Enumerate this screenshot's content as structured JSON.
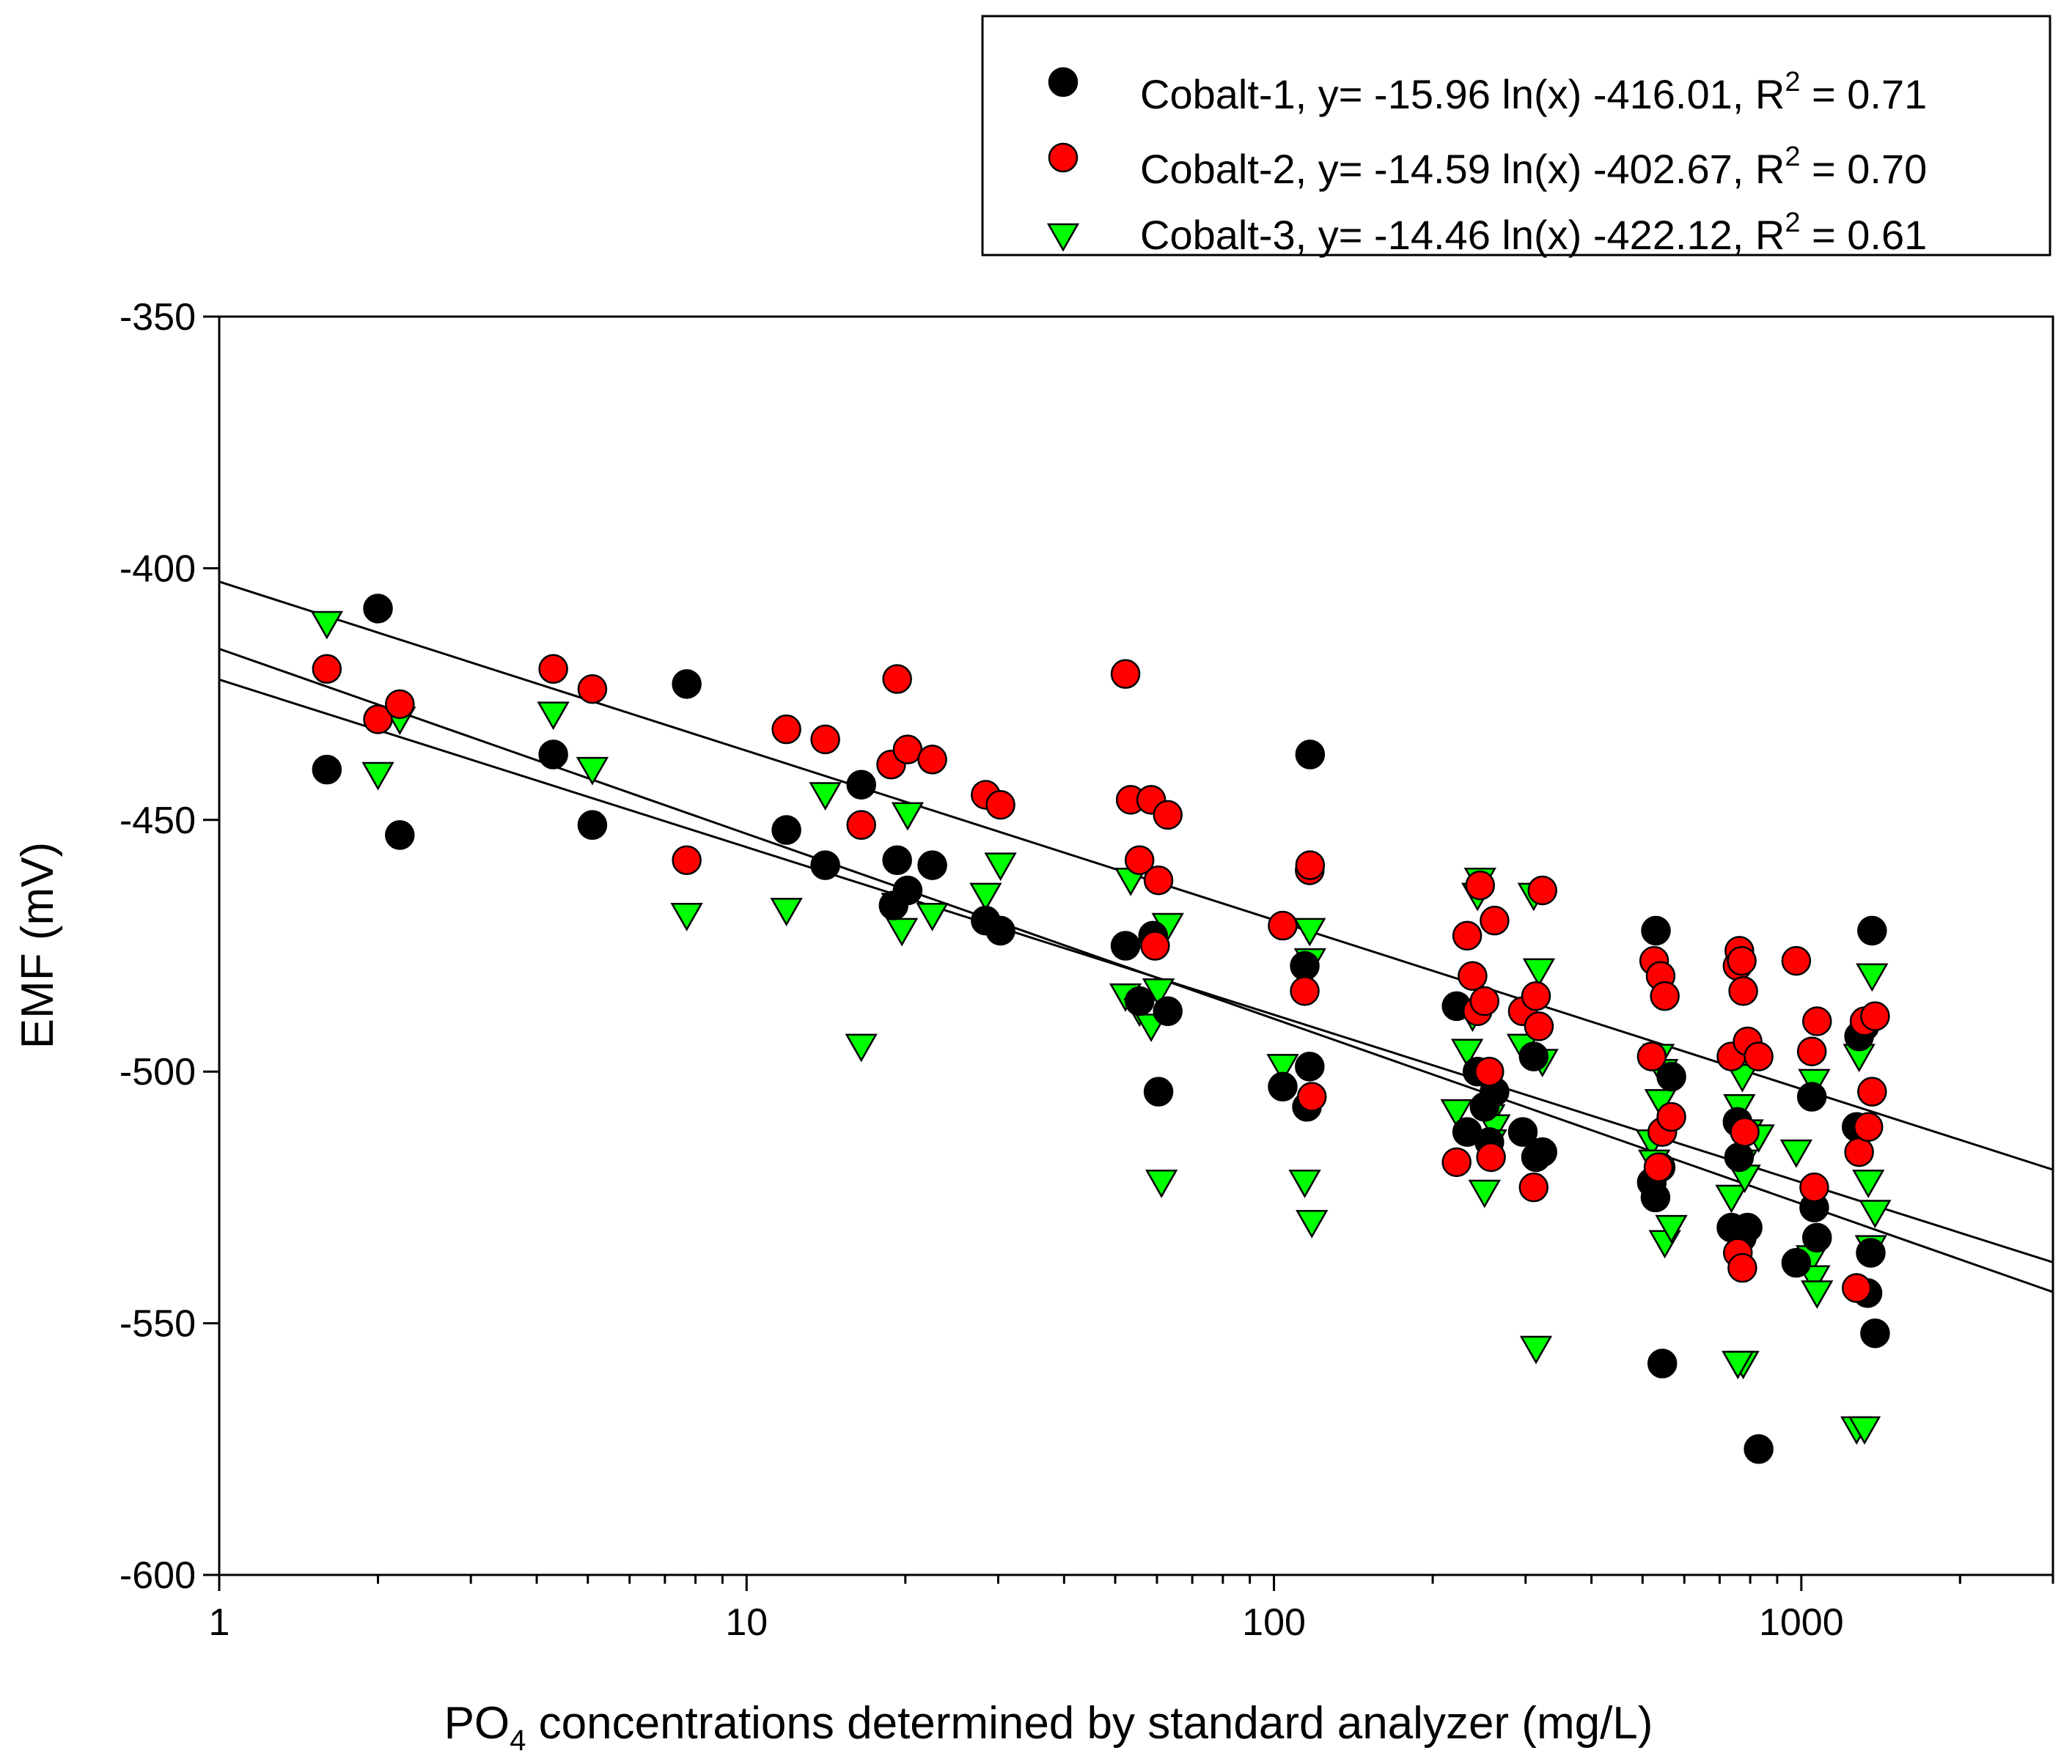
{
  "chart_data": {
    "type": "scatter",
    "xscale": "log",
    "xlim": [
      1,
      3000
    ],
    "ylim": [
      -600,
      -350
    ],
    "xlabel": {
      "prefix": "PO",
      "subscript": "4",
      "suffix": " concentrations determined by standard analyzer (mg/L)"
    },
    "ylabel": "EMF (mV)",
    "xticks": [
      1,
      10,
      100,
      1000
    ],
    "xtick_labels": [
      "1",
      "10",
      "100",
      "1000"
    ],
    "yticks": [
      -350,
      -400,
      -450,
      -500,
      -550,
      -600
    ],
    "ytick_labels": [
      "-350",
      "-400",
      "-450",
      "-500",
      "-550",
      "-600"
    ],
    "legend_position": "top-right, above plot",
    "series": [
      {
        "name": "Cobalt-1",
        "legend": {
          "prefix": "Cobalt-1, y= -15.96 ln(x) -416.01, R",
          "sup": "2",
          "suffix": " = 0.71"
        },
        "marker": "circle",
        "color": "#000000",
        "fit": {
          "slope": -15.96,
          "intercept": -416.01,
          "r2": 0.71
        },
        "points": [
          [
            1.6,
            -440
          ],
          [
            2.0,
            -408
          ],
          [
            2.2,
            -453
          ],
          [
            4.3,
            -437
          ],
          [
            5.1,
            -451
          ],
          [
            7.7,
            -423
          ],
          [
            11.9,
            -452
          ],
          [
            14.1,
            -459
          ],
          [
            16.5,
            -443
          ],
          [
            19.3,
            -458
          ],
          [
            20.2,
            -464
          ],
          [
            22.5,
            -459
          ],
          [
            19.0,
            -467
          ],
          [
            28.4,
            -470
          ],
          [
            30.3,
            -472
          ],
          [
            52.3,
            -475
          ],
          [
            59.0,
            -473
          ],
          [
            60.4,
            -504
          ],
          [
            62.9,
            -488
          ],
          [
            55.6,
            -486
          ],
          [
            103.9,
            -503
          ],
          [
            114.4,
            -479
          ],
          [
            116.9,
            -499
          ],
          [
            115.5,
            -507
          ],
          [
            117.1,
            -437
          ],
          [
            222.0,
            -487
          ],
          [
            232.5,
            -512
          ],
          [
            243.2,
            -500
          ],
          [
            250.8,
            -507
          ],
          [
            256.1,
            -514
          ],
          [
            262.0,
            -504
          ],
          [
            296.4,
            -512
          ],
          [
            310.8,
            -497
          ],
          [
            314.0,
            -517
          ],
          [
            322.9,
            -516
          ],
          [
            520.5,
            -522
          ],
          [
            529.0,
            -525
          ],
          [
            541.0,
            -519
          ],
          [
            545.0,
            -558
          ],
          [
            530.0,
            -472
          ],
          [
            567.0,
            -501
          ],
          [
            737.0,
            -531
          ],
          [
            757.0,
            -510
          ],
          [
            762.0,
            -517
          ],
          [
            771.0,
            -533
          ],
          [
            791.0,
            -531
          ],
          [
            830.0,
            -575
          ],
          [
            978.0,
            -538
          ],
          [
            1047.0,
            -505
          ],
          [
            1058.0,
            -527
          ],
          [
            1071.0,
            -533
          ],
          [
            1273.0,
            -511
          ],
          [
            1287.0,
            -493
          ],
          [
            1318.0,
            -491
          ],
          [
            1335.0,
            -544
          ],
          [
            1354.0,
            -536
          ],
          [
            1362.0,
            -472
          ],
          [
            1380.0,
            -552
          ]
        ]
      },
      {
        "name": "Cobalt-2",
        "legend": {
          "prefix": "Cobalt-2, y= -14.59 ln(x) -402.67, R",
          "sup": "2",
          "suffix": " = 0.70"
        },
        "marker": "circle",
        "color": "#ff0000",
        "fit": {
          "slope": -14.59,
          "intercept": -402.67,
          "r2": 0.7
        },
        "points": [
          [
            1.6,
            -420
          ],
          [
            2.0,
            -430
          ],
          [
            2.2,
            -427
          ],
          [
            4.3,
            -420
          ],
          [
            5.1,
            -424
          ],
          [
            7.7,
            -458
          ],
          [
            11.9,
            -432
          ],
          [
            14.1,
            -434
          ],
          [
            16.5,
            -451
          ],
          [
            18.8,
            -439
          ],
          [
            19.3,
            -422
          ],
          [
            20.2,
            -436
          ],
          [
            22.5,
            -438
          ],
          [
            28.4,
            -445
          ],
          [
            30.3,
            -447
          ],
          [
            52.3,
            -421
          ],
          [
            53.5,
            -446
          ],
          [
            55.6,
            -458
          ],
          [
            58.5,
            -446
          ],
          [
            59.5,
            -475
          ],
          [
            60.4,
            -462
          ],
          [
            62.9,
            -449
          ],
          [
            103.9,
            -471
          ],
          [
            114.4,
            -484
          ],
          [
            116.9,
            -460
          ],
          [
            117.1,
            -459
          ],
          [
            118.0,
            -505
          ],
          [
            222.0,
            -518
          ],
          [
            232.5,
            -473
          ],
          [
            238.0,
            -481
          ],
          [
            243.2,
            -488
          ],
          [
            246.0,
            -463
          ],
          [
            250.8,
            -486
          ],
          [
            256.1,
            -500
          ],
          [
            262.0,
            -470
          ],
          [
            258.0,
            -517
          ],
          [
            296.4,
            -488
          ],
          [
            310.8,
            -523
          ],
          [
            314.0,
            -485
          ],
          [
            318.0,
            -491
          ],
          [
            322.9,
            -464
          ],
          [
            520.5,
            -497
          ],
          [
            526.0,
            -478
          ],
          [
            541.0,
            -481
          ],
          [
            551.0,
            -485
          ],
          [
            545.0,
            -512
          ],
          [
            567.0,
            -509
          ],
          [
            536.0,
            -519
          ],
          [
            737.0,
            -497
          ],
          [
            757.0,
            -479
          ],
          [
            763.0,
            -476
          ],
          [
            771.0,
            -478
          ],
          [
            776.0,
            -484
          ],
          [
            781.0,
            -512
          ],
          [
            791.0,
            -494
          ],
          [
            830.0,
            -497
          ],
          [
            758.0,
            -536
          ],
          [
            773.0,
            -539
          ],
          [
            978.0,
            -478
          ],
          [
            1047.0,
            -496
          ],
          [
            1058.0,
            -523
          ],
          [
            1071.0,
            -490
          ],
          [
            1273.0,
            -543
          ],
          [
            1287.0,
            -516
          ],
          [
            1318.0,
            -490
          ],
          [
            1340.0,
            -511
          ],
          [
            1362.0,
            -504
          ],
          [
            1380.0,
            -489
          ]
        ]
      },
      {
        "name": "Cobalt-3",
        "legend": {
          "prefix": "Cobalt-3, y= -14.46 ln(x) -422.12, R",
          "sup": "2",
          "suffix": " = 0.61"
        },
        "marker": "triangle-down",
        "color": "#00ff00",
        "fit": {
          "slope": -14.46,
          "intercept": -422.12,
          "r2": 0.61
        },
        "points": [
          [
            1.6,
            -411
          ],
          [
            2.0,
            -441
          ],
          [
            2.2,
            -430
          ],
          [
            4.3,
            -429
          ],
          [
            5.1,
            -440
          ],
          [
            7.7,
            -469
          ],
          [
            11.9,
            -468
          ],
          [
            14.1,
            -445
          ],
          [
            16.5,
            -495
          ],
          [
            19.3,
            -467
          ],
          [
            19.7,
            -472
          ],
          [
            20.2,
            -449
          ],
          [
            22.5,
            -469
          ],
          [
            28.4,
            -465
          ],
          [
            30.3,
            -459
          ],
          [
            52.3,
            -485
          ],
          [
            53.5,
            -462
          ],
          [
            55.6,
            -488
          ],
          [
            58.5,
            -491
          ],
          [
            60.4,
            -484
          ],
          [
            61.2,
            -522
          ],
          [
            62.9,
            -471
          ],
          [
            103.9,
            -499
          ],
          [
            114.4,
            -522
          ],
          [
            116.9,
            -472
          ],
          [
            117.1,
            -478
          ],
          [
            118.0,
            -530
          ],
          [
            222.0,
            -508
          ],
          [
            232.5,
            -496
          ],
          [
            238.0,
            -489
          ],
          [
            243.2,
            -465
          ],
          [
            246.0,
            -462
          ],
          [
            250.8,
            -524
          ],
          [
            256.1,
            -509
          ],
          [
            262.0,
            -511
          ],
          [
            258.0,
            -514
          ],
          [
            296.4,
            -495
          ],
          [
            310.8,
            -465
          ],
          [
            314.0,
            -555
          ],
          [
            318.0,
            -480
          ],
          [
            322.9,
            -498
          ],
          [
            520.5,
            -514
          ],
          [
            526.0,
            -518
          ],
          [
            541.0,
            -506
          ],
          [
            551.0,
            -534
          ],
          [
            545.0,
            -500
          ],
          [
            567.0,
            -531
          ],
          [
            536.0,
            -497
          ],
          [
            737.0,
            -525
          ],
          [
            757.0,
            -499
          ],
          [
            763.0,
            -507
          ],
          [
            771.0,
            -518
          ],
          [
            776.0,
            -558
          ],
          [
            781.0,
            -521
          ],
          [
            791.0,
            -512
          ],
          [
            830.0,
            -513
          ],
          [
            758.0,
            -558
          ],
          [
            773.0,
            -501
          ],
          [
            978.0,
            -516
          ],
          [
            1047.0,
            -537
          ],
          [
            1058.0,
            -541
          ],
          [
            1071.0,
            -544
          ],
          [
            1058.0,
            -502
          ],
          [
            1273.0,
            -571
          ],
          [
            1287.0,
            -497
          ],
          [
            1318.0,
            -571
          ],
          [
            1340.0,
            -522
          ],
          [
            1355.0,
            -535
          ],
          [
            1362.0,
            -481
          ],
          [
            1380.0,
            -528
          ]
        ]
      }
    ]
  }
}
